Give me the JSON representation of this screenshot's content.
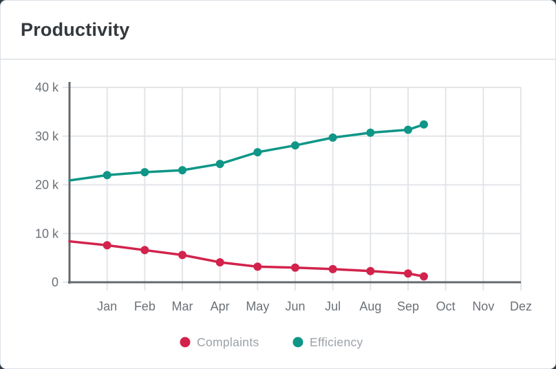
{
  "page": {
    "background_color": "#2e3b44"
  },
  "card": {
    "background_color": "#ffffff",
    "border_color": "#dbe1e8"
  },
  "header": {
    "title": "Productivity",
    "title_color": "#33383d",
    "divider_color": "#e3e7ea"
  },
  "chart_data": {
    "type": "line",
    "title": "Productivity",
    "categories": [
      "Jan",
      "Feb",
      "Mar",
      "Apr",
      "May",
      "Jun",
      "Jul",
      "Aug",
      "Sep",
      "Oct",
      "Nov",
      "Dez"
    ],
    "x_month_index": [
      0,
      1,
      2,
      3,
      4,
      5,
      6,
      7,
      8,
      9,
      9.42
    ],
    "series": [
      {
        "name": "Complaints",
        "color": "#d2234c",
        "values_k": [
          8.4,
          7.6,
          6.6,
          5.6,
          4.1,
          3.2,
          3.0,
          2.7,
          2.3,
          1.8,
          1.2
        ]
      },
      {
        "name": "Efficiency",
        "color": "#0f9687",
        "values_k": [
          20.9,
          22.0,
          22.6,
          23.0,
          24.3,
          26.7,
          28.1,
          29.7,
          30.7,
          31.3,
          32.4
        ]
      }
    ],
    "y_unit": "k",
    "ylim": [
      0,
      40
    ],
    "yticks": [
      {
        "value": 0,
        "label": "0"
      },
      {
        "value": 10,
        "label": "10 k"
      },
      {
        "value": 20,
        "label": "20 k"
      },
      {
        "value": 30,
        "label": "30 k"
      },
      {
        "value": 40,
        "label": "40 k"
      }
    ],
    "grid": true,
    "legend_position": "bottom",
    "first_point_has_marker": false,
    "axis_color": "#64696e",
    "grid_color": "#e2e5e8",
    "tick_label_color": "#6b7177",
    "legend_text_color": "#9aa1a8"
  }
}
